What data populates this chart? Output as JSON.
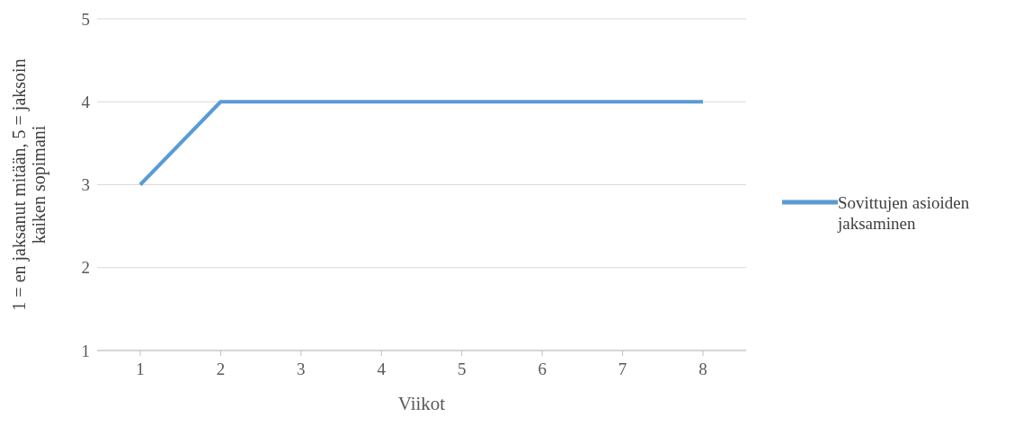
{
  "chart_data": {
    "type": "line",
    "xlabel": "Viikot",
    "ylabel": "1 = en jaksanut mitään, 5 = jaksoin kaiken sopimani",
    "categories": [
      "1",
      "2",
      "3",
      "4",
      "5",
      "6",
      "7",
      "8"
    ],
    "series": [
      {
        "name": "Sovittujen asioiden jaksaminen",
        "color": "#5b9bd5",
        "values": [
          3,
          4,
          4,
          4,
          4,
          4,
          4,
          4
        ]
      }
    ],
    "ylim": [
      1,
      5
    ],
    "yticks": [
      1,
      2,
      3,
      4,
      5
    ],
    "grid": "y",
    "legend": "right",
    "marker": "none",
    "line_style": "solid"
  }
}
